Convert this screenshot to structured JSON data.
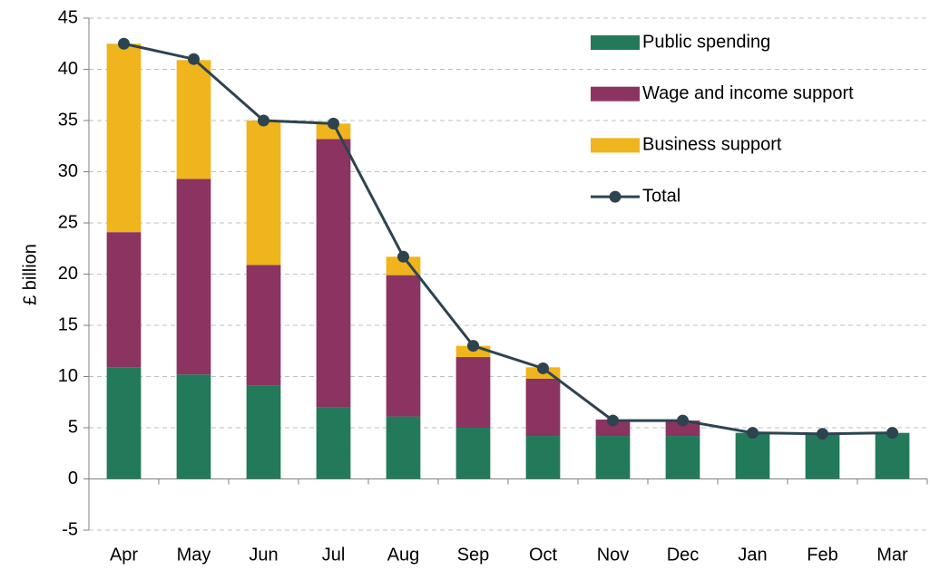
{
  "chart_data": {
    "type": "bar",
    "stacked": true,
    "y_label": "£ billion",
    "categories": [
      "Apr",
      "May",
      "Jun",
      "Jul",
      "Aug",
      "Sep",
      "Oct",
      "Nov",
      "Dec",
      "Jan",
      "Feb",
      "Mar"
    ],
    "series": [
      {
        "name": "Public spending",
        "color": "#237a5b",
        "values": [
          10.9,
          10.2,
          9.1,
          7.0,
          6.1,
          5.0,
          4.2,
          4.2,
          4.2,
          4.5,
          4.4,
          4.5
        ]
      },
      {
        "name": "Wage and income support",
        "color": "#8b3461",
        "values": [
          13.2,
          19.1,
          11.8,
          26.2,
          13.8,
          6.9,
          5.6,
          1.6,
          1.5,
          0,
          0,
          0
        ]
      },
      {
        "name": "Business support",
        "color": "#f0b41c",
        "values": [
          18.4,
          11.6,
          14.1,
          1.5,
          1.8,
          1.1,
          1.1,
          0,
          0,
          0,
          0,
          0
        ]
      },
      {
        "name": "Total",
        "type": "line",
        "color": "#2d4450",
        "values": [
          42.5,
          41.0,
          35.0,
          34.7,
          21.7,
          13.0,
          10.8,
          5.7,
          5.7,
          4.5,
          4.4,
          4.5
        ]
      }
    ],
    "ylim": [
      -5,
      45
    ],
    "yticks": [
      -5,
      0,
      5,
      10,
      15,
      20,
      25,
      30,
      35,
      40,
      45
    ],
    "grid": true,
    "legend": "top-right"
  }
}
